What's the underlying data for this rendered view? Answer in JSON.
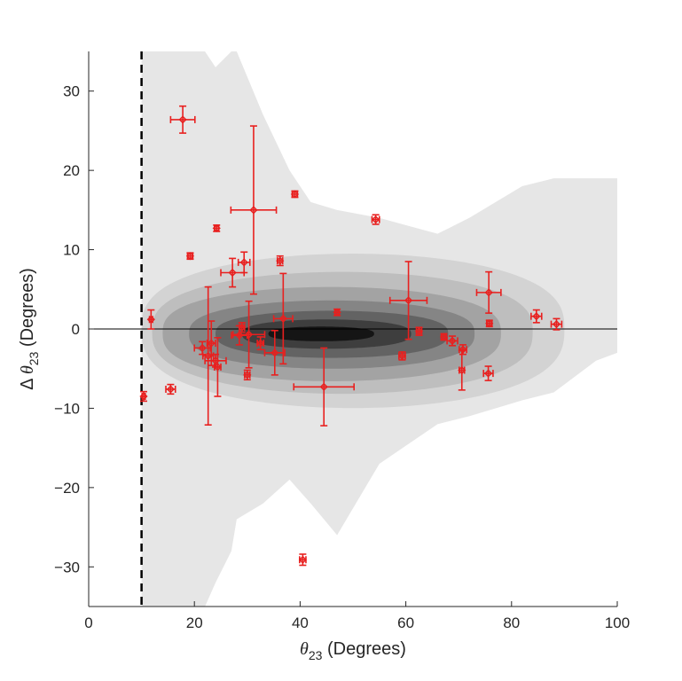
{
  "chart_data": {
    "type": "scatter",
    "title": "",
    "xlabel": {
      "symbol": "θ",
      "sub": "23",
      "rest": " (Degrees)"
    },
    "ylabel": {
      "prefix": "Δ ",
      "symbol": "θ",
      "sub": "23",
      "rest": " (Degrees)"
    },
    "xlim": [
      0,
      100
    ],
    "ylim": [
      -35,
      35
    ],
    "xticks": [
      0,
      20,
      40,
      60,
      80,
      100
    ],
    "yticks": [
      -30,
      -20,
      -10,
      0,
      10,
      20,
      30
    ],
    "xtick_labels": [
      "0",
      "20",
      "40",
      "60",
      "80",
      "100"
    ],
    "ytick_labels": [
      "−30",
      "−20",
      "−10",
      "0",
      "10",
      "20",
      "30"
    ],
    "grid": false,
    "legend": "none",
    "reference_lines": {
      "vertical_dashed_x": 10,
      "horizontal_y": 0
    },
    "colors": {
      "points": "#e8201f",
      "reference": "#000000",
      "axis": "#262626"
    },
    "density_background": {
      "description": "gray filled contours of simulated distribution, darkest near y=0 for x 25-60",
      "levels": [
        {
          "shade": "#e6e6e6",
          "xs": [
            10,
            16,
            22,
            24,
            27,
            28,
            33,
            38,
            42,
            47,
            55,
            66,
            72,
            82,
            88,
            96,
            100
          ],
          "top": [
            35,
            35,
            35,
            33,
            35,
            35,
            27,
            20,
            16,
            15,
            14,
            12,
            14,
            18,
            19,
            19,
            19
          ],
          "bottom": [
            -35,
            -35,
            -35,
            -32,
            -28,
            -24,
            -22,
            -19,
            -22,
            -26,
            -17,
            -12,
            -11,
            -9,
            -8,
            -4,
            -3
          ]
        },
        {
          "shade": "#d3d3d3",
          "cx": 50,
          "cy": 0,
          "rx": 40,
          "ry": 9.5,
          "x0": 10,
          "x1": 95
        },
        {
          "shade": "#bebebe",
          "cx": 48,
          "cy": -0.3,
          "rx": 36,
          "ry": 7.5,
          "x0": 12,
          "x1": 88
        },
        {
          "shade": "#a3a3a3",
          "cx": 46,
          "cy": -0.5,
          "rx": 32,
          "ry": 5.8,
          "x0": 14,
          "x1": 82
        },
        {
          "shade": "#858585",
          "cx": 46,
          "cy": -0.6,
          "rx": 27,
          "ry": 4.2,
          "x0": 18,
          "x1": 76
        },
        {
          "shade": "#636363",
          "cx": 46,
          "cy": -0.6,
          "rx": 22,
          "ry": 2.9,
          "x0": 22,
          "x1": 70
        },
        {
          "shade": "#3e3e3e",
          "cx": 45,
          "cy": -0.6,
          "rx": 16,
          "ry": 1.8,
          "x0": 28,
          "x1": 64
        },
        {
          "shade": "#151515",
          "cx": 44,
          "cy": -0.6,
          "rx": 10,
          "ry": 0.9,
          "x0": 33,
          "x1": 57
        }
      ]
    },
    "series": [
      {
        "marker": "diamond",
        "points": [
          {
            "x": 17.8,
            "y": 26.4,
            "xerr": 2.3,
            "yerr": 1.7
          },
          {
            "x": 11.8,
            "y": 1.2,
            "xerr": 0.3,
            "yerr": 1.2
          },
          {
            "x": 10.4,
            "y": -8.5,
            "xerr": 0.3,
            "yerr": 0.6
          },
          {
            "x": 15.5,
            "y": -7.6,
            "xerr": 0.9,
            "yerr": 0.6
          },
          {
            "x": 19.2,
            "y": 9.2,
            "xerr": 0.5,
            "yerr": 0.4
          },
          {
            "x": 24.2,
            "y": 12.7,
            "xerr": 0.4,
            "yerr": 0.4
          },
          {
            "x": 31.2,
            "y": 15.0,
            "xerr": 4.3,
            "yerr": 10.6
          },
          {
            "x": 39.0,
            "y": 17.0,
            "xerr": 0.5,
            "yerr": 0.4
          },
          {
            "x": 27.2,
            "y": 7.1,
            "xerr": 2.2,
            "yerr": 1.8
          },
          {
            "x": 29.4,
            "y": 8.4,
            "xerr": 1.1,
            "yerr": 1.3
          },
          {
            "x": 36.2,
            "y": 8.6,
            "xerr": 0.5,
            "yerr": 0.6
          },
          {
            "x": 22.6,
            "y": -3.4,
            "xerr": 1.0,
            "yerr": 8.7
          },
          {
            "x": 21.5,
            "y": -2.4,
            "xerr": 1.5,
            "yerr": 0.8
          },
          {
            "x": 23.2,
            "y": -1.8,
            "xerr": 0.8,
            "yerr": 2.8
          },
          {
            "x": 24.0,
            "y": -4.0,
            "xerr": 2.0,
            "yerr": 0.8
          },
          {
            "x": 24.4,
            "y": -4.8,
            "xerr": 0.6,
            "yerr": 3.7
          },
          {
            "x": 28.5,
            "y": -0.8,
            "xerr": 1.5,
            "yerr": 1.2
          },
          {
            "x": 29.0,
            "y": 0.2,
            "xerr": 0.5,
            "yerr": 0.6
          },
          {
            "x": 30.3,
            "y": -0.7,
            "xerr": 3.0,
            "yerr": 4.2
          },
          {
            "x": 30.0,
            "y": -5.8,
            "xerr": 0.5,
            "yerr": 0.6
          },
          {
            "x": 32.5,
            "y": -1.8,
            "xerr": 0.6,
            "yerr": 0.8
          },
          {
            "x": 35.2,
            "y": -3.0,
            "xerr": 1.9,
            "yerr": 2.8
          },
          {
            "x": 36.8,
            "y": 1.3,
            "xerr": 1.8,
            "yerr": 5.7
          },
          {
            "x": 44.5,
            "y": -7.3,
            "xerr": 5.7,
            "yerr": 4.9
          },
          {
            "x": 47.0,
            "y": 2.1,
            "xerr": 0.4,
            "yerr": 0.4
          },
          {
            "x": 54.3,
            "y": 13.8,
            "xerr": 0.7,
            "yerr": 0.6
          },
          {
            "x": 60.5,
            "y": 3.6,
            "xerr": 3.5,
            "yerr": 4.9
          },
          {
            "x": 62.5,
            "y": -0.3,
            "xerr": 0.5,
            "yerr": 0.5
          },
          {
            "x": 59.3,
            "y": -3.4,
            "xerr": 0.6,
            "yerr": 0.5
          },
          {
            "x": 67.2,
            "y": -1.0,
            "xerr": 0.5,
            "yerr": 0.4
          },
          {
            "x": 68.8,
            "y": -1.5,
            "xerr": 1.0,
            "yerr": 0.6
          },
          {
            "x": 70.8,
            "y": -2.6,
            "xerr": 0.7,
            "yerr": 0.6
          },
          {
            "x": 70.6,
            "y": -5.2,
            "xerr": 0.5,
            "yerr": 2.5
          },
          {
            "x": 75.7,
            "y": 4.6,
            "xerr": 2.3,
            "yerr": 2.6
          },
          {
            "x": 75.8,
            "y": 0.7,
            "xerr": 0.5,
            "yerr": 0.4
          },
          {
            "x": 75.6,
            "y": -5.6,
            "xerr": 0.9,
            "yerr": 0.9
          },
          {
            "x": 84.7,
            "y": 1.6,
            "xerr": 1.0,
            "yerr": 0.8
          },
          {
            "x": 88.5,
            "y": 0.6,
            "xerr": 1.0,
            "yerr": 0.7
          },
          {
            "x": 40.5,
            "y": -29.1,
            "xerr": 0.6,
            "yerr": 0.7
          }
        ]
      }
    ]
  }
}
